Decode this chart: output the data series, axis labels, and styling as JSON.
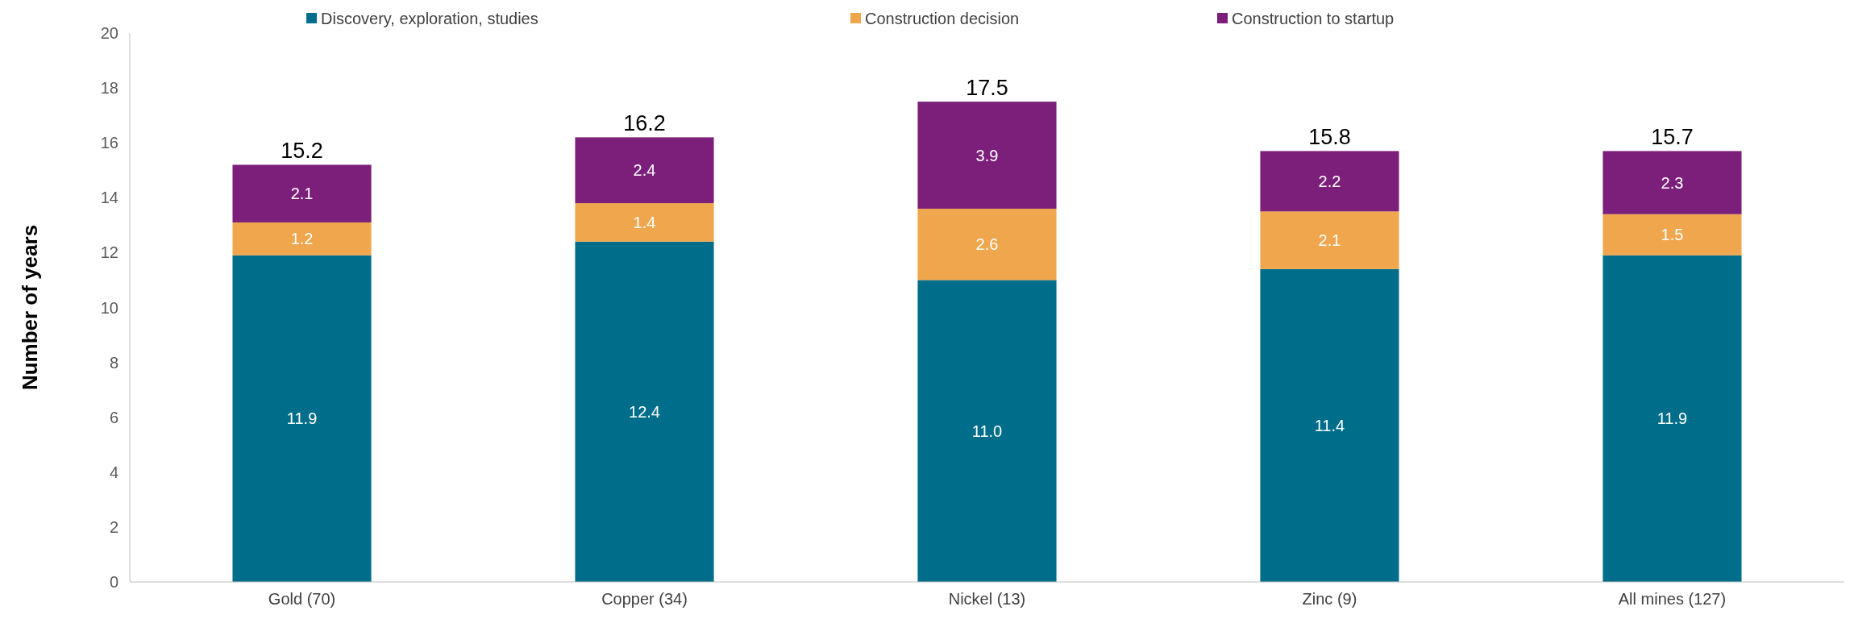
{
  "chart_data": {
    "type": "bar",
    "stacked": true,
    "ylabel": "Number of years",
    "categories": [
      "Gold (70)",
      "Copper (34)",
      "Nickel (13)",
      "Zinc (9)",
      "All mines (127)"
    ],
    "series": [
      {
        "name": "Discovery, exploration, studies",
        "color": "#006e8a",
        "values": [
          11.9,
          12.4,
          11.0,
          11.4,
          11.9
        ],
        "value_labels": [
          "11.9",
          "12.4",
          "11.0",
          "11.4",
          "11.9"
        ]
      },
      {
        "name": "Construction decision",
        "color": "#f0a64c",
        "values": [
          1.2,
          1.4,
          2.6,
          2.1,
          1.5
        ],
        "value_labels": [
          "1.2",
          "1.4",
          "2.6",
          "2.1",
          "1.5"
        ]
      },
      {
        "name": "Construction to startup",
        "color": "#7b1f7a",
        "values": [
          2.1,
          2.4,
          3.9,
          2.2,
          2.3
        ],
        "value_labels": [
          "2.1",
          "2.4",
          "3.9",
          "2.2",
          "2.3"
        ]
      }
    ],
    "totals": [
      "15.2",
      "16.2",
      "17.5",
      "15.8",
      "15.7"
    ],
    "ylim": [
      0,
      20
    ],
    "yticks": [
      0,
      2,
      4,
      6,
      8,
      10,
      12,
      14,
      16,
      18,
      20
    ],
    "grid": false,
    "legend": "top"
  }
}
